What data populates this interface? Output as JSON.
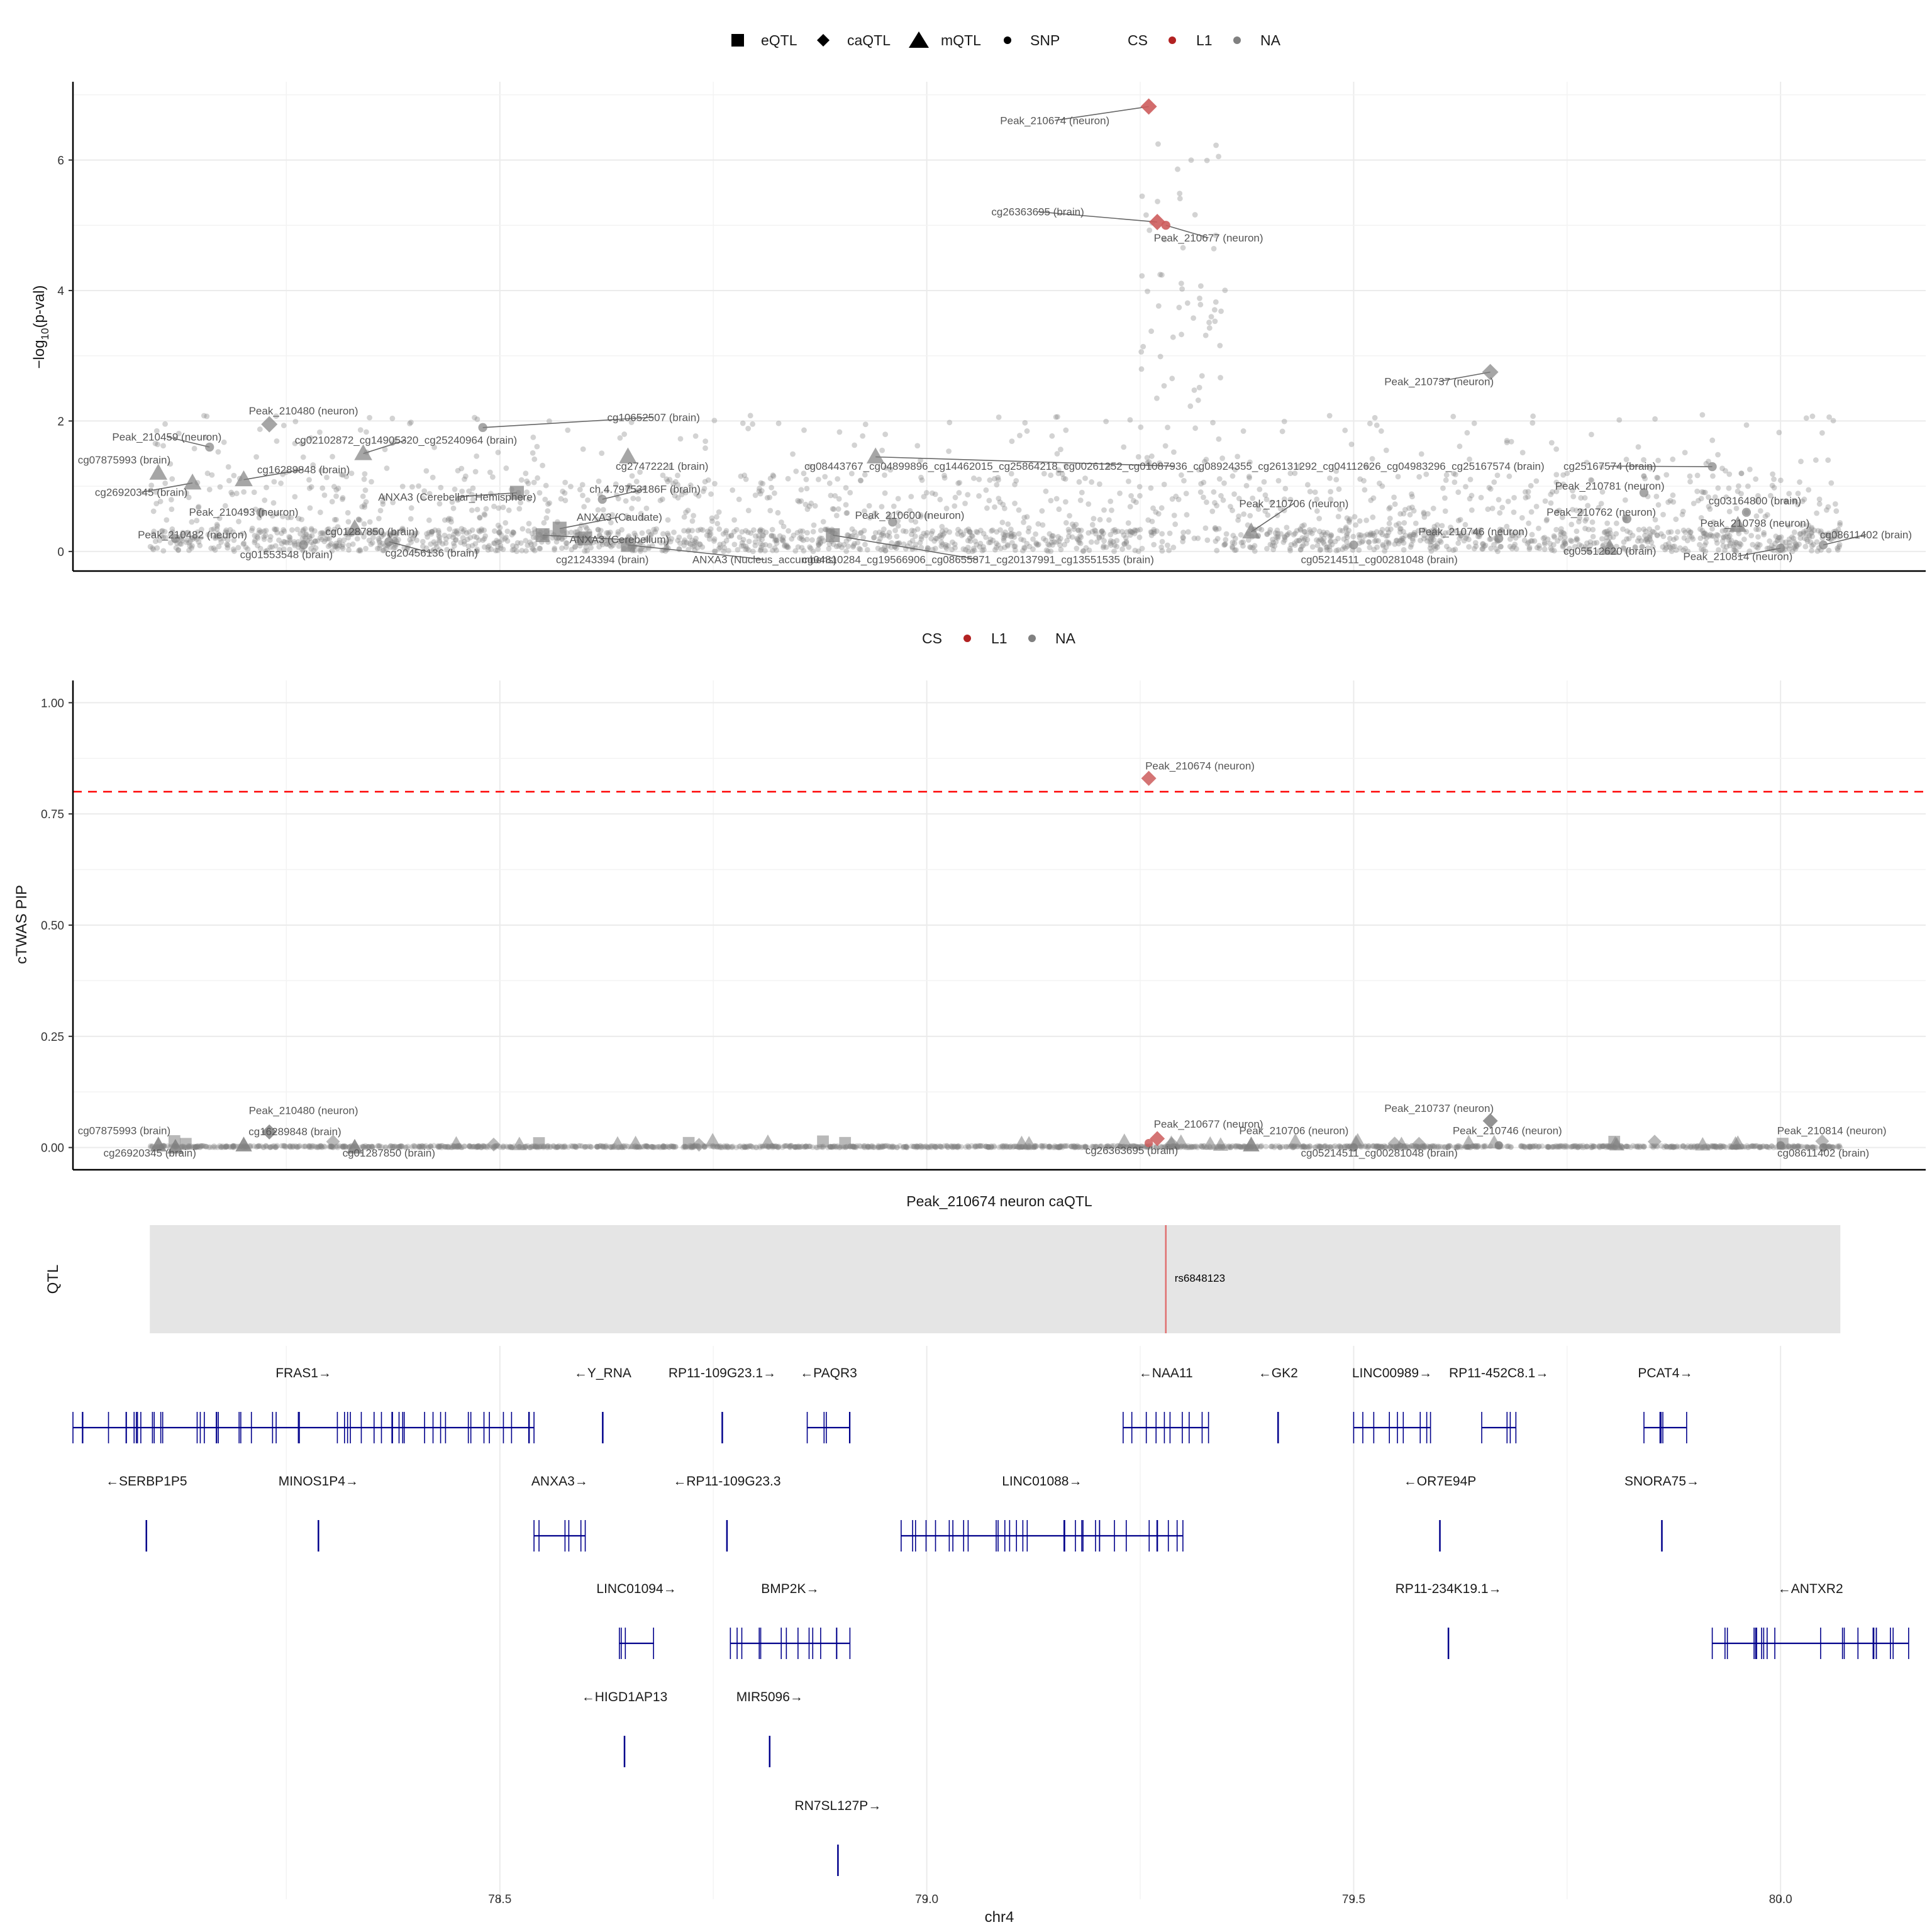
{
  "legend_top": {
    "shapes": [
      {
        "symbol": "square",
        "label": "eQTL"
      },
      {
        "symbol": "diamond",
        "label": "caQTL"
      },
      {
        "symbol": "triangle",
        "label": "mQTL"
      },
      {
        "symbol": "circle",
        "label": "SNP"
      }
    ],
    "cs_title": "CS",
    "cs_items": [
      {
        "label": "L1",
        "color": "#b22222"
      },
      {
        "label": "NA",
        "color": "#808080"
      }
    ]
  },
  "legend_mid": {
    "cs_title": "CS",
    "cs_items": [
      {
        "label": "L1",
        "color": "#b22222"
      },
      {
        "label": "NA",
        "color": "#808080"
      }
    ]
  },
  "colors": {
    "l1": "#cd5c5c",
    "na": "#808080",
    "gene": "#00008b",
    "threshold": "#ff0000",
    "grid": "#ebebeb",
    "qtl_band": "#e5e5e5",
    "qtl_line": "#e07070"
  },
  "chart_data": [
    {
      "type": "scatter",
      "title": "",
      "xlabel": "",
      "ylabel": "-log10(p-val)",
      "xlim": [
        78.0,
        80.17
      ],
      "ylim": [
        -0.3,
        7.2
      ],
      "yticks": [
        0,
        2,
        4,
        6
      ],
      "grid": true,
      "points": [
        {
          "x": 79.26,
          "y": 6.82,
          "shape": "diamond",
          "cs": "L1",
          "label": "Peak_210674 (neuron)",
          "label_x": 79.15,
          "label_y": 6.55
        },
        {
          "x": 79.27,
          "y": 5.05,
          "shape": "diamond",
          "cs": "L1",
          "label": "cg26363695 (brain)",
          "label_x": 79.13,
          "label_y": 5.15
        },
        {
          "x": 79.28,
          "y": 5.0,
          "shape": "circle",
          "cs": "L1",
          "label": "Peak_210677 (neuron)",
          "label_x": 79.33,
          "label_y": 4.75
        },
        {
          "x": 79.66,
          "y": 2.75,
          "shape": "diamond",
          "cs": "NA",
          "label": "Peak_210737 (neuron)",
          "label_x": 79.6,
          "label_y": 2.55
        },
        {
          "x": 78.48,
          "y": 1.9,
          "shape": "circle",
          "cs": "NA",
          "label": "cg10652507 (brain)",
          "label_x": 78.68,
          "label_y": 2.0
        },
        {
          "x": 78.23,
          "y": 1.95,
          "shape": "diamond",
          "cs": "NA",
          "label": "Peak_210480 (neuron)",
          "label_x": 78.27,
          "label_y": 2.1
        },
        {
          "x": 78.16,
          "y": 1.6,
          "shape": "circle",
          "cs": "NA",
          "label": "Peak_210459 (neuron)",
          "label_x": 78.11,
          "label_y": 1.7
        },
        {
          "x": 78.1,
          "y": 1.2,
          "shape": "triangle",
          "cs": "NA",
          "label": "cg07875993 (brain)",
          "label_x": 78.06,
          "label_y": 1.35
        },
        {
          "x": 78.14,
          "y": 1.05,
          "shape": "triangle",
          "cs": "NA",
          "label": "cg26920345 (brain)",
          "label_x": 78.08,
          "label_y": 0.85
        },
        {
          "x": 78.34,
          "y": 1.5,
          "shape": "triangle",
          "cs": "NA",
          "label": "cg02102872_cg14905320_cg25240964 (brain)",
          "label_x": 78.39,
          "label_y": 1.65
        },
        {
          "x": 78.2,
          "y": 1.1,
          "shape": "triangle",
          "cs": "NA",
          "label": "cg16289848 (brain)",
          "label_x": 78.27,
          "label_y": 1.2
        },
        {
          "x": 78.22,
          "y": 0.6,
          "shape": "circle",
          "cs": "NA",
          "label": "Peak_210493 (neuron)",
          "label_x": 78.2,
          "label_y": 0.55
        },
        {
          "x": 78.12,
          "y": 0.2,
          "shape": "circle",
          "cs": "NA",
          "label": "Peak_210482 (neuron)",
          "label_x": 78.14,
          "label_y": 0.2
        },
        {
          "x": 78.27,
          "y": 0.1,
          "shape": "circle",
          "cs": "NA",
          "label": "cg01553548 (brain)",
          "label_x": 78.25,
          "label_y": -0.1
        },
        {
          "x": 78.33,
          "y": 0.35,
          "shape": "triangle",
          "cs": "NA",
          "label": "cg01287850 (brain)",
          "label_x": 78.35,
          "label_y": 0.25
        },
        {
          "x": 78.37,
          "y": 0.15,
          "shape": "circle",
          "cs": "NA",
          "label": "cg20456136 (brain)",
          "label_x": 78.42,
          "label_y": -0.08
        },
        {
          "x": 78.52,
          "y": 0.9,
          "shape": "square",
          "cs": "NA",
          "label": "ANXA3 (Cerebellar_Hemisphere)",
          "label_x": 78.45,
          "label_y": 0.78
        },
        {
          "x": 78.57,
          "y": 0.35,
          "shape": "square",
          "cs": "NA",
          "label": "ANXA3 (Caudate)",
          "label_x": 78.64,
          "label_y": 0.47
        },
        {
          "x": 78.55,
          "y": 0.25,
          "shape": "square",
          "cs": "NA",
          "label": "ANXA3 (Cerebellum)",
          "label_x": 78.64,
          "label_y": 0.13
        },
        {
          "x": 78.6,
          "y": 0.2,
          "shape": "square",
          "cs": "NA",
          "label": "cg21243394 (brain)",
          "label_x": 78.62,
          "label_y": -0.18
        },
        {
          "x": 78.65,
          "y": 0.1,
          "shape": "square",
          "cs": "NA",
          "label": "ANXA3 (Nucleus_accumbens)",
          "label_x": 78.81,
          "label_y": -0.18
        },
        {
          "x": 78.65,
          "y": 1.45,
          "shape": "triangle",
          "cs": "NA",
          "label": "cg27472221 (brain)",
          "label_x": 78.69,
          "label_y": 1.25
        },
        {
          "x": 78.62,
          "y": 0.8,
          "shape": "circle",
          "cs": "NA",
          "label": "ch.4.79753186F (brain)",
          "label_x": 78.67,
          "label_y": 0.9
        },
        {
          "x": 78.94,
          "y": 1.45,
          "shape": "triangle",
          "cs": "NA",
          "label": "cg08443767_cg04899896_cg14462015_cg25864218_cg00261252_cg01087936_cg08924355_cg26131292_cg04112626_cg04983296_cg25167574 (brain)",
          "label_x": 79.29,
          "label_y": 1.25
        },
        {
          "x": 78.96,
          "y": 0.45,
          "shape": "circle",
          "cs": "NA",
          "label": "Peak_210600 (neuron)",
          "label_x": 78.98,
          "label_y": 0.5
        },
        {
          "x": 78.89,
          "y": 0.25,
          "shape": "square",
          "cs": "NA",
          "label": "cg04810284_cg19566906_cg08655871_cg20137991_cg13551535 (brain)",
          "label_x": 79.06,
          "label_y": -0.18
        },
        {
          "x": 79.38,
          "y": 0.3,
          "shape": "triangle",
          "cs": "NA",
          "label": "Peak_210706 (neuron)",
          "label_x": 79.43,
          "label_y": 0.68
        },
        {
          "x": 79.5,
          "y": 0.1,
          "shape": "circle",
          "cs": "NA",
          "label": "cg05214511_cg00281048 (brain)",
          "label_x": 79.53,
          "label_y": -0.18
        },
        {
          "x": 79.67,
          "y": 0.2,
          "shape": "circle",
          "cs": "NA",
          "label": "Peak_210746 (neuron)",
          "label_x": 79.64,
          "label_y": 0.25
        },
        {
          "x": 79.84,
          "y": 0.9,
          "shape": "circle",
          "cs": "NA",
          "label": "Peak_210781 (neuron)",
          "label_x": 79.8,
          "label_y": 0.95
        },
        {
          "x": 79.82,
          "y": 0.5,
          "shape": "circle",
          "cs": "NA",
          "label": "Peak_210762 (neuron)",
          "label_x": 79.79,
          "label_y": 0.55
        },
        {
          "x": 79.8,
          "y": 0.05,
          "shape": "triangle",
          "cs": "NA",
          "label": "cg05512620 (brain)",
          "label_x": 79.8,
          "label_y": -0.05
        },
        {
          "x": 79.92,
          "y": 1.3,
          "shape": "circle",
          "cs": "NA",
          "label": "cg25167574 (brain)",
          "label_x": 79.8,
          "label_y": 1.25
        },
        {
          "x": 79.96,
          "y": 0.6,
          "shape": "circle",
          "cs": "NA",
          "label": "cg03164800 (brain)",
          "label_x": 79.97,
          "label_y": 0.72
        },
        {
          "x": 79.95,
          "y": 0.4,
          "shape": "triangle",
          "cs": "NA",
          "label": "Peak_210798 (neuron)",
          "label_x": 79.97,
          "label_y": 0.38
        },
        {
          "x": 80.0,
          "y": 0.05,
          "shape": "circle",
          "cs": "NA",
          "label": "Peak_210814 (neuron)",
          "label_x": 79.95,
          "label_y": -0.13
        },
        {
          "x": 80.05,
          "y": 0.1,
          "shape": "circle",
          "cs": "NA",
          "label": "cg08611402 (brain)",
          "label_x": 80.1,
          "label_y": 0.2
        }
      ]
    },
    {
      "type": "scatter",
      "title": "",
      "xlabel": "",
      "ylabel": "cTWAS PIP",
      "xlim": [
        78.0,
        80.17
      ],
      "ylim": [
        -0.05,
        1.05
      ],
      "yticks": [
        0.0,
        0.25,
        0.5,
        0.75,
        1.0
      ],
      "ytick_labels": [
        "0.00",
        "0.25",
        "0.50",
        "0.75",
        "1.00"
      ],
      "threshold": 0.8,
      "grid": true,
      "points": [
        {
          "x": 79.26,
          "y": 0.83,
          "shape": "diamond",
          "cs": "L1",
          "label": "Peak_210674 (neuron)",
          "label_x": 79.32,
          "label_y": 0.85
        },
        {
          "x": 79.27,
          "y": 0.02,
          "shape": "diamond",
          "cs": "L1",
          "label": "Peak_210677 (neuron)",
          "label_x": 79.33,
          "label_y": 0.045
        },
        {
          "x": 79.26,
          "y": 0.01,
          "shape": "circle",
          "cs": "L1",
          "label": "cg26363695 (brain)",
          "label_x": 79.24,
          "label_y": -0.015
        },
        {
          "x": 79.66,
          "y": 0.06,
          "shape": "diamond",
          "cs": "NA",
          "label": "Peak_210737 (neuron)",
          "label_x": 79.6,
          "label_y": 0.08
        },
        {
          "x": 78.23,
          "y": 0.035,
          "shape": "diamond",
          "cs": "NA",
          "label": "Peak_210480 (neuron)",
          "label_x": 78.27,
          "label_y": 0.075
        },
        {
          "x": 78.1,
          "y": 0.005,
          "shape": "triangle",
          "cs": "NA",
          "label": "cg07875993 (brain)",
          "label_x": 78.06,
          "label_y": 0.03
        },
        {
          "x": 78.12,
          "y": 0.0,
          "shape": "triangle",
          "cs": "NA",
          "label": "cg26920345 (brain)",
          "label_x": 78.09,
          "label_y": -0.02
        },
        {
          "x": 78.2,
          "y": 0.005,
          "shape": "triangle",
          "cs": "NA",
          "label": "cg16289848 (brain)",
          "label_x": 78.26,
          "label_y": 0.028
        },
        {
          "x": 78.33,
          "y": 0.0,
          "shape": "triangle",
          "cs": "NA",
          "label": "cg01287850 (brain)",
          "label_x": 78.37,
          "label_y": -0.02
        },
        {
          "x": 79.38,
          "y": 0.005,
          "shape": "triangle",
          "cs": "NA",
          "label": "Peak_210706 (neuron)",
          "label_x": 79.43,
          "label_y": 0.03
        },
        {
          "x": 79.67,
          "y": 0.005,
          "shape": "circle",
          "cs": "NA",
          "label": "Peak_210746 (neuron)",
          "label_x": 79.68,
          "label_y": 0.03
        },
        {
          "x": 79.5,
          "y": 0.0,
          "shape": "circle",
          "cs": "NA",
          "label": "cg05214511_cg00281048 (brain)",
          "label_x": 79.53,
          "label_y": -0.02
        },
        {
          "x": 80.0,
          "y": 0.005,
          "shape": "circle",
          "cs": "NA",
          "label": "Peak_210814 (neuron)",
          "label_x": 80.06,
          "label_y": 0.03
        },
        {
          "x": 80.05,
          "y": 0.0,
          "shape": "circle",
          "cs": "NA",
          "label": "cg08611402 (brain)",
          "label_x": 80.05,
          "label_y": -0.02
        }
      ]
    },
    {
      "type": "track",
      "title": "Peak_210674 neuron caQTL",
      "ylabel": "QTL",
      "region": [
        78.09,
        80.07
      ],
      "snp": {
        "x": 79.28,
        "label": "rs6848123"
      }
    },
    {
      "type": "gene_track",
      "xlabel": "chr4",
      "xlim": [
        78.0,
        80.17
      ],
      "xticks": [
        78.5,
        79.0,
        79.5,
        80.0
      ],
      "xtick_labels": [
        "78.5",
        "79.0",
        "79.5",
        "80.0"
      ],
      "genes": [
        {
          "name": "FRAS1→",
          "start": 78.0,
          "end": 78.54,
          "row": 0
        },
        {
          "name": "←Y_RNA",
          "start": 78.62,
          "end": 78.621,
          "row": 0
        },
        {
          "name": "RP11-109G23.1→",
          "start": 78.76,
          "end": 78.761,
          "row": 0
        },
        {
          "name": "←PAQR3",
          "start": 78.86,
          "end": 78.91,
          "row": 0
        },
        {
          "name": "←NAA11",
          "start": 79.23,
          "end": 79.33,
          "row": 0
        },
        {
          "name": "←GK2",
          "start": 79.41,
          "end": 79.413,
          "row": 0
        },
        {
          "name": "LINC00989→",
          "start": 79.5,
          "end": 79.59,
          "row": 0
        },
        {
          "name": "RP11-452C8.1→",
          "start": 79.65,
          "end": 79.69,
          "row": 0
        },
        {
          "name": "PCAT4→",
          "start": 79.84,
          "end": 79.89,
          "row": 0
        },
        {
          "name": "←SERBP1P5",
          "start": 78.085,
          "end": 78.087,
          "row": 1
        },
        {
          "name": "MINOS1P4→",
          "start": 78.287,
          "end": 78.288,
          "row": 1
        },
        {
          "name": "ANXA3→",
          "start": 78.54,
          "end": 78.6,
          "row": 1
        },
        {
          "name": "←RP11-109G23.3",
          "start": 78.765,
          "end": 78.767,
          "row": 1
        },
        {
          "name": "LINC01088→",
          "start": 78.97,
          "end": 79.3,
          "row": 1
        },
        {
          "name": "←OR7E94P",
          "start": 79.6,
          "end": 79.602,
          "row": 1
        },
        {
          "name": "SNORA75→",
          "start": 79.86,
          "end": 79.862,
          "row": 1
        },
        {
          "name": "LINC01094→",
          "start": 78.64,
          "end": 78.68,
          "row": 2
        },
        {
          "name": "BMP2K→",
          "start": 78.77,
          "end": 78.91,
          "row": 2
        },
        {
          "name": "RP11-234K19.1→",
          "start": 79.61,
          "end": 79.612,
          "row": 2
        },
        {
          "name": "←ANTXR2",
          "start": 79.92,
          "end": 80.15,
          "row": 2
        },
        {
          "name": "←HIGD1AP13",
          "start": 78.645,
          "end": 78.647,
          "row": 3
        },
        {
          "name": "MIR5096→",
          "start": 78.815,
          "end": 78.817,
          "row": 3
        },
        {
          "name": "RN7SL127P→",
          "start": 78.895,
          "end": 78.897,
          "row": 4
        }
      ]
    }
  ]
}
